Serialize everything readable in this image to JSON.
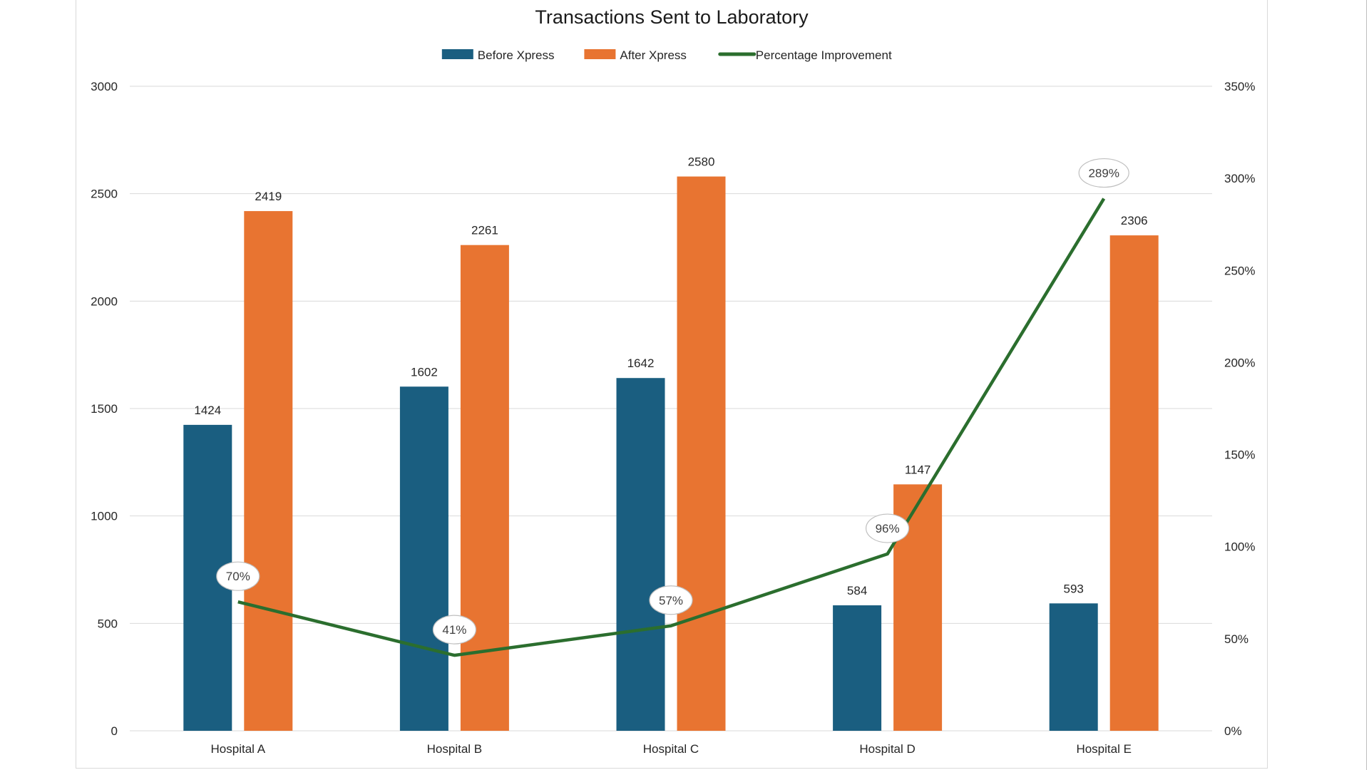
{
  "chart_data": {
    "type": "bar",
    "title": "Transactions Sent to Laboratory",
    "categories": [
      "Hospital A",
      "Hospital B",
      "Hospital C",
      "Hospital D",
      "Hospital E"
    ],
    "series": [
      {
        "name": "Before Xpress",
        "kind": "bar",
        "axis": "left",
        "color": "#1a5e80",
        "values": [
          1424,
          1602,
          1642,
          584,
          593
        ],
        "labels": [
          "1424",
          "1602",
          "1642",
          "584",
          "593"
        ]
      },
      {
        "name": "After Xpress",
        "kind": "bar",
        "axis": "left",
        "color": "#e87431",
        "values": [
          2419,
          2261,
          2580,
          1147,
          2306
        ],
        "labels": [
          "2419",
          "2261",
          "2580",
          "1147",
          "2306"
        ]
      },
      {
        "name": "Percentage Improvement",
        "kind": "line",
        "axis": "right",
        "color": "#2b6e2e",
        "values": [
          70,
          41,
          57,
          96,
          289
        ],
        "labels": [
          "70%",
          "41%",
          "57%",
          "96%",
          "289%"
        ]
      }
    ],
    "y_left": {
      "min": 0,
      "max": 3000,
      "ticks": [
        0,
        500,
        1000,
        1500,
        2000,
        2500,
        3000
      ],
      "tick_labels": [
        "0",
        "500",
        "1000",
        "1500",
        "2000",
        "2500",
        "3000"
      ]
    },
    "y_right": {
      "min": 0,
      "max": 350,
      "ticks": [
        0,
        50,
        100,
        150,
        200,
        250,
        300,
        350
      ],
      "tick_labels": [
        "0%",
        "50%",
        "100%",
        "150%",
        "200%",
        "250%",
        "300%",
        "350%"
      ]
    },
    "legend": {
      "position": "top"
    },
    "grid": true,
    "colors": {
      "gridline": "#d9d9d9",
      "percent_label_border": "#bfbfbf"
    }
  }
}
